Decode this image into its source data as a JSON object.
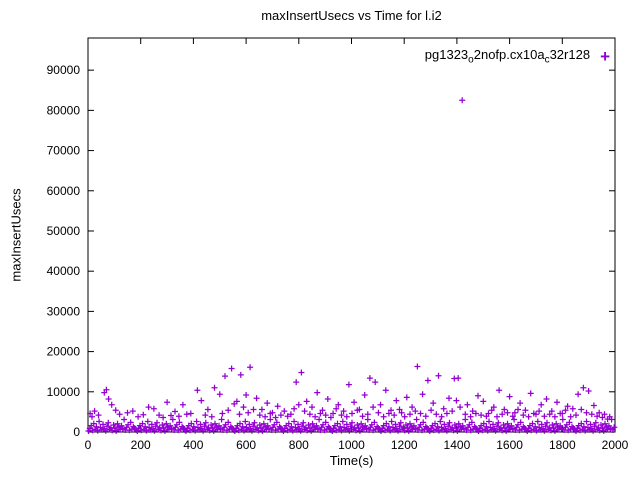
{
  "chart_data": {
    "type": "scatter",
    "title": "maxInsertUsecs vs Time for l.i2",
    "xlabel": "Time(s)",
    "ylabel": "maxInsertUsecs",
    "xlim": [
      0,
      2000
    ],
    "ylim": [
      0,
      98000
    ],
    "xticks": [
      0,
      200,
      400,
      600,
      800,
      1000,
      1200,
      1400,
      1600,
      1800,
      2000
    ],
    "yticks": [
      0,
      10000,
      20000,
      30000,
      40000,
      50000,
      60000,
      70000,
      80000,
      90000
    ],
    "grid": false,
    "marker_color": "#9400d3",
    "legend": {
      "position": "top-right",
      "label_plain": "pg1323_o2nofp.cx10a_c32r128",
      "label_segments": [
        {
          "text": "pg1323"
        },
        {
          "text": "o",
          "sub": true
        },
        {
          "text": "2nofp.cx10a"
        },
        {
          "text": "c",
          "sub": true
        },
        {
          "text": "32r128"
        }
      ],
      "marker_char": "+"
    },
    "series": [
      {
        "name": "pg1323_o2nofp.cx10a_c32r128",
        "marker": "plus",
        "color": "#9400d3",
        "band_points": {
          "x_start": 2,
          "x_step": 5,
          "y": [
            250,
            900,
            1600,
            450,
            2100,
            700,
            1300,
            350,
            2600,
            1100,
            550,
            1900,
            800,
            300,
            1450,
            2300,
            650,
            1050,
            400,
            1750,
            950,
            280,
            2050,
            1250,
            600,
            1550,
            850,
            3100,
            500,
            1200,
            1800,
            420,
            2400,
            750,
            1350,
            980,
            520,
            250,
            900,
            1600,
            450,
            2100,
            700,
            1300,
            350,
            2600,
            1100,
            550,
            1900,
            800,
            300,
            1450,
            2300,
            650,
            1050,
            400,
            1750,
            950,
            280,
            2050,
            1250,
            600,
            1550,
            850,
            3100,
            500,
            1200,
            1800,
            420,
            2400,
            750,
            1350,
            980,
            520,
            250,
            900,
            1600,
            450,
            2100,
            700,
            1300,
            350,
            2600,
            1100,
            550,
            1900,
            800,
            300,
            1450,
            2300,
            650,
            1050,
            400,
            1750,
            950,
            280,
            2050,
            1250,
            600,
            1550,
            850,
            3100,
            500,
            1200,
            1800,
            420,
            2400,
            750,
            1350,
            980,
            520,
            250,
            900,
            1600,
            450,
            2100,
            700,
            1300,
            350,
            2600,
            1100,
            550,
            1900,
            800,
            300,
            1450,
            2300,
            650,
            1050,
            400,
            1750,
            950,
            280,
            2050,
            1250,
            600,
            1550,
            850,
            3100,
            500,
            1200,
            1800,
            420,
            2400,
            750,
            1350,
            980,
            520,
            250,
            900,
            1600,
            450,
            2100,
            700,
            1300,
            350,
            2600,
            1100,
            550,
            1900,
            800,
            300,
            1450,
            2300,
            650,
            1050,
            400,
            1750,
            950,
            280,
            2050,
            1250,
            600,
            1550,
            850,
            3100,
            500,
            1200,
            1800,
            420,
            2400,
            750,
            1350,
            980,
            520,
            250,
            900,
            1600,
            450,
            2100,
            700,
            1300,
            350,
            2600,
            1100,
            550,
            1900,
            800,
            300,
            1450,
            2300,
            650,
            1050,
            400,
            1750,
            950,
            280,
            2050,
            1250,
            600,
            1550,
            850,
            3100,
            500,
            1200,
            1800,
            420,
            2400,
            750,
            1350,
            980,
            520,
            250,
            900,
            1600,
            450,
            2100,
            700,
            1300,
            350,
            2600,
            1100,
            550,
            1900,
            800,
            300,
            1450,
            2300,
            650,
            1050,
            400,
            1750,
            950,
            280,
            2050,
            1250,
            600,
            1550,
            850,
            3100,
            500,
            1200,
            1800,
            420,
            2400,
            750,
            1350,
            980,
            520,
            250,
            900,
            1600,
            450,
            2100,
            700,
            1300,
            350,
            2600,
            1100,
            550,
            1900,
            800,
            300,
            1450,
            2300,
            650,
            1050,
            400,
            1750,
            950,
            280,
            2050,
            1250,
            600,
            1550,
            850,
            3100,
            500,
            1200,
            1800,
            420,
            2400,
            750,
            1350,
            980,
            520,
            250,
            900,
            1600,
            450,
            2100,
            700,
            1300,
            350,
            2600,
            1100,
            550,
            1900,
            800,
            300,
            1450,
            2300,
            650,
            1050,
            400,
            1750,
            950,
            280,
            2050,
            1250,
            600,
            1550,
            850,
            3100,
            500,
            1200,
            1800,
            420,
            2400,
            750,
            1350,
            980,
            520,
            250,
            900,
            1600,
            450,
            2100,
            700,
            1300,
            350,
            2600,
            1100,
            550,
            1900,
            800,
            300,
            1450,
            2300,
            650,
            1050,
            400,
            1750,
            950,
            280,
            2050,
            1250,
            600,
            1550,
            850,
            3100,
            500,
            1200,
            1800,
            420,
            2400,
            750,
            1350,
            980,
            520,
            250,
            900,
            1600,
            450,
            2100,
            700,
            1300,
            350,
            2600,
            1100,
            550,
            1900,
            800,
            300,
            1450,
            2300,
            650,
            1050,
            400,
            1750,
            950,
            280,
            2050,
            1250,
            600,
            1550,
            850,
            3100,
            500,
            1200
          ]
        },
        "spike_points": [
          [
            8,
            4600
          ],
          [
            15,
            3800
          ],
          [
            25,
            5200
          ],
          [
            40,
            4200
          ],
          [
            62,
            9800
          ],
          [
            70,
            10500
          ],
          [
            78,
            8200
          ],
          [
            90,
            6800
          ],
          [
            105,
            5400
          ],
          [
            120,
            4400
          ],
          [
            150,
            4800
          ],
          [
            170,
            5200
          ],
          [
            190,
            3800
          ],
          [
            210,
            4300
          ],
          [
            230,
            6200
          ],
          [
            250,
            5800
          ],
          [
            270,
            4200
          ],
          [
            285,
            3600
          ],
          [
            300,
            7400
          ],
          [
            315,
            4100
          ],
          [
            330,
            5100
          ],
          [
            345,
            3900
          ],
          [
            360,
            6800
          ],
          [
            375,
            4400
          ],
          [
            390,
            4600
          ],
          [
            415,
            10400
          ],
          [
            430,
            7800
          ],
          [
            445,
            4200
          ],
          [
            455,
            5600
          ],
          [
            470,
            3800
          ],
          [
            480,
            11000
          ],
          [
            500,
            9400
          ],
          [
            510,
            4600
          ],
          [
            520,
            13900
          ],
          [
            532,
            5400
          ],
          [
            545,
            15800
          ],
          [
            555,
            7000
          ],
          [
            565,
            7600
          ],
          [
            575,
            4400
          ],
          [
            580,
            14200
          ],
          [
            590,
            6200
          ],
          [
            600,
            9200
          ],
          [
            608,
            4800
          ],
          [
            615,
            16100
          ],
          [
            628,
            5600
          ],
          [
            640,
            8400
          ],
          [
            652,
            4200
          ],
          [
            660,
            5600
          ],
          [
            672,
            3800
          ],
          [
            680,
            7200
          ],
          [
            692,
            4600
          ],
          [
            700,
            4800
          ],
          [
            712,
            3600
          ],
          [
            720,
            6400
          ],
          [
            732,
            4200
          ],
          [
            745,
            5200
          ],
          [
            758,
            3900
          ],
          [
            770,
            4400
          ],
          [
            782,
            5800
          ],
          [
            790,
            12400
          ],
          [
            800,
            6800
          ],
          [
            810,
            14800
          ],
          [
            822,
            5200
          ],
          [
            830,
            7600
          ],
          [
            842,
            4400
          ],
          [
            850,
            6200
          ],
          [
            862,
            3800
          ],
          [
            870,
            9800
          ],
          [
            882,
            4600
          ],
          [
            890,
            5400
          ],
          [
            902,
            4200
          ],
          [
            910,
            8200
          ],
          [
            922,
            3600
          ],
          [
            930,
            4600
          ],
          [
            942,
            5800
          ],
          [
            950,
            6800
          ],
          [
            962,
            4200
          ],
          [
            970,
            5200
          ],
          [
            982,
            3800
          ],
          [
            990,
            11800
          ],
          [
            1002,
            4600
          ],
          [
            1010,
            7400
          ],
          [
            1022,
            5400
          ],
          [
            1030,
            5600
          ],
          [
            1042,
            3900
          ],
          [
            1050,
            9200
          ],
          [
            1062,
            4400
          ],
          [
            1070,
            13400
          ],
          [
            1082,
            6200
          ],
          [
            1090,
            12400
          ],
          [
            1102,
            4800
          ],
          [
            1110,
            6800
          ],
          [
            1122,
            3800
          ],
          [
            1130,
            10400
          ],
          [
            1142,
            4600
          ],
          [
            1150,
            5400
          ],
          [
            1162,
            4200
          ],
          [
            1170,
            7800
          ],
          [
            1182,
            5600
          ],
          [
            1190,
            4800
          ],
          [
            1202,
            3800
          ],
          [
            1210,
            8600
          ],
          [
            1222,
            4400
          ],
          [
            1230,
            6200
          ],
          [
            1242,
            5200
          ],
          [
            1250,
            16300
          ],
          [
            1262,
            4600
          ],
          [
            1270,
            9400
          ],
          [
            1282,
            3900
          ],
          [
            1290,
            12800
          ],
          [
            1302,
            5400
          ],
          [
            1310,
            7200
          ],
          [
            1322,
            4400
          ],
          [
            1330,
            14000
          ],
          [
            1342,
            3800
          ],
          [
            1350,
            5800
          ],
          [
            1362,
            4600
          ],
          [
            1370,
            8400
          ],
          [
            1382,
            5200
          ],
          [
            1390,
            13300
          ],
          [
            1398,
            7800
          ],
          [
            1405,
            13400
          ],
          [
            1412,
            6200
          ],
          [
            1432,
            4400
          ],
          [
            1440,
            6800
          ],
          [
            1452,
            3800
          ],
          [
            1460,
            5200
          ],
          [
            1472,
            4600
          ],
          [
            1480,
            9000
          ],
          [
            1492,
            4200
          ],
          [
            1500,
            7600
          ],
          [
            1512,
            3900
          ],
          [
            1520,
            4600
          ],
          [
            1532,
            5400
          ],
          [
            1540,
            6200
          ],
          [
            1552,
            3800
          ],
          [
            1560,
            10400
          ],
          [
            1572,
            4400
          ],
          [
            1580,
            5600
          ],
          [
            1592,
            4800
          ],
          [
            1600,
            8800
          ],
          [
            1612,
            3900
          ],
          [
            1620,
            4800
          ],
          [
            1632,
            5600
          ],
          [
            1640,
            7200
          ],
          [
            1652,
            4200
          ],
          [
            1660,
            5400
          ],
          [
            1672,
            3800
          ],
          [
            1680,
            9600
          ],
          [
            1692,
            4600
          ],
          [
            1700,
            4400
          ],
          [
            1712,
            5200
          ],
          [
            1720,
            6800
          ],
          [
            1732,
            3900
          ],
          [
            1740,
            8200
          ],
          [
            1752,
            4400
          ],
          [
            1760,
            5200
          ],
          [
            1772,
            3800
          ],
          [
            1780,
            7400
          ],
          [
            1792,
            4600
          ],
          [
            1800,
            4600
          ],
          [
            1812,
            5400
          ],
          [
            1820,
            6400
          ],
          [
            1832,
            3800
          ],
          [
            1840,
            5800
          ],
          [
            1852,
            4200
          ],
          [
            1860,
            9400
          ],
          [
            1872,
            5600
          ],
          [
            1880,
            11000
          ],
          [
            1892,
            4800
          ],
          [
            1900,
            10200
          ],
          [
            1912,
            4400
          ],
          [
            1920,
            6600
          ],
          [
            1932,
            3900
          ],
          [
            1940,
            4800
          ],
          [
            1952,
            3600
          ],
          [
            1960,
            4400
          ],
          [
            1972,
            3200
          ],
          [
            1980,
            3800
          ]
        ],
        "outlier_points": [
          [
            1420,
            82500
          ]
        ]
      }
    ]
  }
}
